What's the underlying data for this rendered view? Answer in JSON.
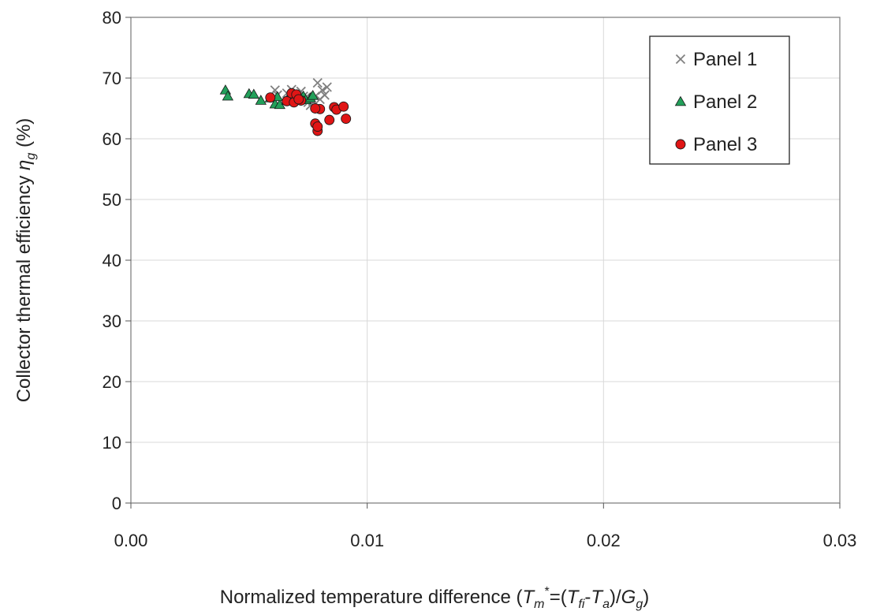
{
  "chart_data": {
    "type": "scatter",
    "xlim": [
      0,
      0.03
    ],
    "ylim": [
      0,
      80
    ],
    "x_ticks": [
      0,
      0.01,
      0.02,
      0.03
    ],
    "x_tick_labels": [
      "0.00",
      "0.01",
      "0.02",
      "0.03"
    ],
    "y_ticks": [
      0,
      10,
      20,
      30,
      40,
      50,
      60,
      70,
      80
    ],
    "y_tick_labels": [
      "0",
      "10",
      "20",
      "30",
      "40",
      "50",
      "60",
      "70",
      "80"
    ],
    "grid": true,
    "legend_position": "top-right",
    "xlabel": {
      "prefix": "Normalized temperature difference (",
      "T_m": "T",
      "m": "m",
      "star": "*",
      "eq_open": "=(",
      "T_fi": "T",
      "fi": "fi",
      "dash": "-",
      "T_a": "T",
      "a": "a",
      "slash": ")/",
      "G": "G",
      "g": "g",
      "close": ")"
    },
    "ylabel": {
      "main": "Collector thermal efficiency ",
      "eta": "η",
      "sub": "g",
      "unit": " (%)"
    },
    "series": [
      {
        "name": "Panel 1",
        "marker": "x",
        "color": "#808080",
        "x": [
          0.0061,
          0.0066,
          0.0068,
          0.007,
          0.0072,
          0.0074,
          0.0075,
          0.0076,
          0.0077,
          0.0078,
          0.0079,
          0.008,
          0.0081,
          0.0082,
          0.0083,
          0.0073,
          0.0069,
          0.0062
        ],
        "y": [
          68.0,
          67.5,
          68.1,
          67.2,
          67.8,
          66.8,
          66.0,
          65.5,
          66.2,
          67.0,
          69.2,
          66.5,
          68.0,
          67.2,
          68.5,
          67.0,
          66.3,
          67.2
        ]
      },
      {
        "name": "Panel 2",
        "marker": "triangle",
        "color": "#22a05a",
        "x": [
          0.004,
          0.0041,
          0.005,
          0.0052,
          0.0055,
          0.0059,
          0.0061,
          0.0063,
          0.0066,
          0.007,
          0.0073,
          0.0074,
          0.0076,
          0.0077,
          0.0062,
          0.0068
        ],
        "y": [
          68.0,
          67.0,
          67.4,
          67.3,
          66.3,
          66.7,
          65.7,
          65.6,
          66.3,
          66.6,
          67.0,
          66.4,
          66.7,
          67.1,
          66.9,
          66.8
        ]
      },
      {
        "name": "Panel 3",
        "marker": "circle",
        "color": "#e01515",
        "x": [
          0.0059,
          0.0066,
          0.0068,
          0.0069,
          0.007,
          0.0072,
          0.0078,
          0.0079,
          0.0079,
          0.008,
          0.0084,
          0.0086,
          0.0087,
          0.009,
          0.0091,
          0.0078,
          0.0071
        ],
        "y": [
          66.8,
          66.2,
          67.5,
          66.0,
          67.3,
          66.3,
          62.5,
          61.3,
          62.0,
          64.9,
          63.1,
          65.2,
          64.8,
          65.3,
          63.3,
          65.0,
          66.5
        ]
      }
    ]
  }
}
